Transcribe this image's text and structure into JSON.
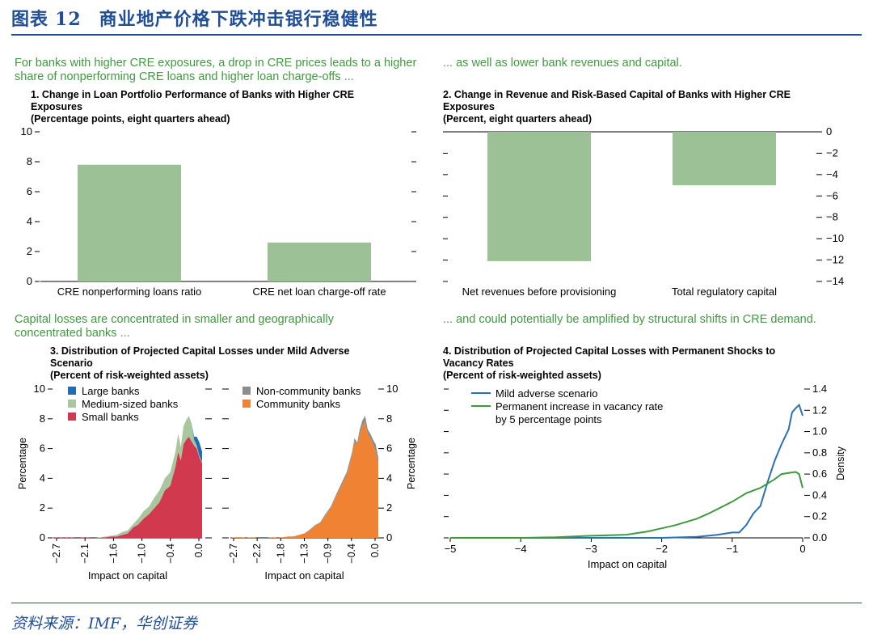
{
  "header": {
    "label": "图表",
    "number": "12",
    "title": "商业地产价格下跌冲击银行稳健性"
  },
  "source": "资料来源：IMF，华创证券",
  "captions": {
    "top_left": "For banks with higher CRE exposures, a drop in CRE prices leads to a higher share of nonperforming CRE loans and higher loan charge-offs ...",
    "top_right": "... as well as lower bank revenues and capital.",
    "bottom_left": "Capital losses are concentrated in smaller and geographically concentrated banks ...",
    "bottom_right": "... and could potentially be amplified by structural shifts in CRE demand."
  },
  "chart_data": [
    {
      "type": "bar",
      "title": "1. Change in Loan Portfolio Performance of Banks with Higher CRE Exposures",
      "subtitle": "(Percentage points, eight quarters ahead)",
      "categories": [
        "CRE nonperforming loans ratio",
        "CRE net loan charge-off rate"
      ],
      "values": [
        7.8,
        2.6
      ],
      "ylim": [
        0,
        10
      ],
      "yticks": [
        0,
        2,
        4,
        6,
        8,
        10
      ],
      "color": "#9dc196"
    },
    {
      "type": "bar",
      "title": "2. Change in Revenue and Risk-Based Capital of Banks with Higher CRE Exposures",
      "subtitle": "(Percent, eight quarters ahead)",
      "categories": [
        "Net revenues before provisioning",
        "Total regulatory capital"
      ],
      "values": [
        -12.1,
        -5.0
      ],
      "ylim": [
        -14,
        0
      ],
      "yticks": [
        0,
        -2,
        -4,
        -6,
        -8,
        -10,
        -12,
        -14
      ],
      "color": "#9dc196"
    },
    {
      "type": "area",
      "title": "3. Distribution of Projected Capital Losses under Mild Adverse Scenario",
      "subtitle": "(Percent of risk-weighted assets)",
      "ylabel": "Percentage",
      "xlabel": "Impact on capital",
      "ylim": [
        0,
        10
      ],
      "yticks": [
        0,
        2,
        4,
        6,
        8,
        10
      ],
      "panels": [
        {
          "xticks": [
            "-2.7",
            "-2.1",
            "-1.6",
            "-1.0",
            "-0.4",
            "0.0"
          ],
          "x": [
            -2.8,
            -2.7,
            -2.6,
            -2.5,
            -2.4,
            -2.3,
            -2.2,
            -2.1,
            -2.0,
            -1.9,
            -1.8,
            -1.7,
            -1.6,
            -1.5,
            -1.4,
            -1.3,
            -1.2,
            -1.1,
            -1.0,
            -0.9,
            -0.8,
            -0.7,
            -0.6,
            -0.5,
            -0.45,
            -0.4,
            -0.35,
            -0.3,
            -0.25,
            -0.2,
            -0.15,
            -0.1,
            -0.05,
            0.0
          ],
          "series": [
            {
              "name": "Small banks",
              "color": "#d1394f",
              "values": [
                0,
                0.05,
                0,
                0.05,
                0,
                0,
                0.05,
                0,
                0,
                0,
                0.05,
                0.1,
                0.1,
                0.2,
                0.3,
                0.7,
                0.9,
                1.3,
                1.6,
                2.0,
                2.4,
                3.2,
                3.5,
                4.8,
                5.8,
                5.2,
                6.3,
                6.6,
                6.8,
                6.5,
                6.2,
                6.0,
                5.4,
                5.0
              ]
            },
            {
              "name": "Medium-sized banks",
              "color": "#a8c79f",
              "values": [
                0,
                0,
                0,
                0,
                0,
                0,
                0,
                0,
                0,
                0.05,
                0.05,
                0.05,
                0.1,
                0.2,
                0.2,
                0.2,
                0.4,
                0.5,
                0.5,
                0.7,
                0.8,
                0.8,
                0.9,
                1.0,
                1.2,
                0.9,
                1.2,
                1.3,
                1.4,
                1.2,
                0.4,
                0.2,
                0.1,
                0.1
              ]
            },
            {
              "name": "Large banks",
              "color": "#1f6eb5",
              "values": [
                0,
                0,
                0,
                0,
                0,
                0,
                0,
                0,
                0,
                0,
                0,
                0,
                0,
                0,
                0,
                0,
                0,
                0,
                0,
                0,
                0,
                0,
                0,
                0,
                0,
                0,
                0,
                0,
                0,
                0,
                0.2,
                0.6,
                0.9,
                0.7
              ]
            }
          ]
        },
        {
          "xticks": [
            "-2.7",
            "-2.2",
            "-1.8",
            "-1.3",
            "-0.9",
            "-0.4",
            "0.0"
          ],
          "x": [
            -2.8,
            -2.7,
            -2.6,
            -2.5,
            -2.4,
            -2.3,
            -2.2,
            -2.1,
            -2.0,
            -1.9,
            -1.8,
            -1.7,
            -1.6,
            -1.5,
            -1.4,
            -1.3,
            -1.2,
            -1.1,
            -1.0,
            -0.9,
            -0.8,
            -0.7,
            -0.6,
            -0.5,
            -0.45,
            -0.4,
            -0.35,
            -0.3,
            -0.25,
            -0.2,
            -0.15,
            -0.1,
            -0.05,
            0.0
          ],
          "series": [
            {
              "name": "Community banks",
              "color": "#f08234",
              "values": [
                0,
                0.05,
                0.05,
                0,
                0.05,
                0,
                0,
                0,
                0.05,
                0,
                0.05,
                0.1,
                0.1,
                0.2,
                0.3,
                0.5,
                0.8,
                1.0,
                1.5,
                2.0,
                2.8,
                3.5,
                4.2,
                5.5,
                6.5,
                6.2,
                7.0,
                7.5,
                7.8,
                7.0,
                6.7,
                6.3,
                5.8,
                5.0
              ]
            },
            {
              "name": "Non-community banks",
              "color": "#8c8c8c",
              "values": [
                0,
                0,
                0,
                0,
                0,
                0,
                0,
                0,
                0,
                0,
                0,
                0,
                0,
                0,
                0,
                0.05,
                0.05,
                0.05,
                0.1,
                0.1,
                0.1,
                0.15,
                0.2,
                0.2,
                0.2,
                0.2,
                0.3,
                0.4,
                0.4,
                0.3,
                0.3,
                0.3,
                0.5,
                0.4
              ]
            }
          ]
        }
      ]
    },
    {
      "type": "line",
      "title": "4. Distribution of Projected Capital Losses with Permanent Shocks to Vacancy Rates",
      "subtitle": "(Percent of risk-weighted assets)",
      "xlabel": "Impact on capital",
      "ylabel": "Density",
      "xlim": [
        -5,
        0
      ],
      "xticks": [
        "-5",
        "-4",
        "-3",
        "-2",
        "-1",
        "0"
      ],
      "ylim": [
        0,
        1.4
      ],
      "yticks": [
        "0.0",
        "0.2",
        "0.4",
        "0.6",
        "0.8",
        "1.0",
        "1.2",
        "1.4"
      ],
      "series": [
        {
          "name": "Mild adverse scenario",
          "color": "#2a6fb8",
          "x": [
            -5,
            -4,
            -3,
            -2,
            -1.5,
            -1.2,
            -1.0,
            -0.9,
            -0.8,
            -0.7,
            -0.6,
            -0.5,
            -0.4,
            -0.3,
            -0.2,
            -0.15,
            -0.1,
            -0.05,
            0
          ],
          "y": [
            0,
            0,
            0,
            0,
            0.01,
            0.03,
            0.05,
            0.05,
            0.12,
            0.23,
            0.3,
            0.52,
            0.72,
            0.88,
            1.02,
            1.18,
            1.22,
            1.25,
            1.15
          ]
        },
        {
          "name": "Permanent increase in vacancy rate by 5 percentage points",
          "color": "#3f9a3f",
          "x": [
            -5,
            -4,
            -3.5,
            -3,
            -2.5,
            -2.2,
            -2.0,
            -1.8,
            -1.5,
            -1.3,
            -1.0,
            -0.8,
            -0.6,
            -0.4,
            -0.3,
            -0.2,
            -0.1,
            -0.05,
            0
          ],
          "y": [
            0,
            0,
            0.005,
            0.02,
            0.03,
            0.06,
            0.09,
            0.12,
            0.18,
            0.24,
            0.34,
            0.42,
            0.47,
            0.55,
            0.6,
            0.61,
            0.62,
            0.6,
            0.47
          ]
        }
      ]
    }
  ]
}
